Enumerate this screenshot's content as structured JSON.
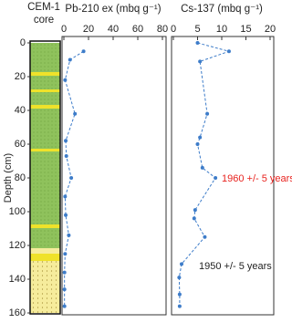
{
  "core_label": [
    "CEM-1",
    "core"
  ],
  "chart_data": [
    {
      "type": "line",
      "title": "Pb-210 ex (mbq g⁻¹)",
      "ylabel": "Depth (cm)",
      "y": [
        5,
        10,
        22,
        42,
        58,
        67,
        80,
        91,
        102,
        114,
        125,
        136,
        146,
        156
      ],
      "series": [
        {
          "color": "#3d7cc9",
          "values": [
            16,
            5,
            1,
            9,
            1.5,
            2,
            6,
            1,
            1.5,
            4,
            1,
            0.5,
            0.5,
            0.5
          ]
        }
      ],
      "xlim": [
        0,
        80
      ],
      "xticks": [
        0,
        20,
        40,
        60,
        80
      ],
      "ylim": [
        0,
        160
      ],
      "yticks": [
        0,
        20,
        40,
        60,
        80,
        100,
        120,
        140,
        160
      ]
    },
    {
      "type": "line",
      "title": "Cs-137 (mbq g⁻¹)",
      "y": [
        0,
        5,
        11,
        42,
        56,
        60,
        74,
        80,
        99,
        104,
        115,
        131,
        139,
        149,
        156
      ],
      "series": [
        {
          "color": "#3d7cc9",
          "values": [
            5,
            11.5,
            5.5,
            7,
            5.5,
            5,
            6,
            8.7,
            4.5,
            4.3,
            6.5,
            1.7,
            1.2,
            1.3,
            1.3
          ]
        }
      ],
      "xlim": [
        0,
        20
      ],
      "xticks": [
        0,
        5,
        10,
        15,
        20
      ],
      "ylim": [
        0,
        160
      ],
      "annotations": [
        {
          "text": "1960 +/- 5 years",
          "color": "#e8231f"
        },
        {
          "text": "1950 +/- 5 years",
          "color": "#222222"
        }
      ]
    }
  ]
}
